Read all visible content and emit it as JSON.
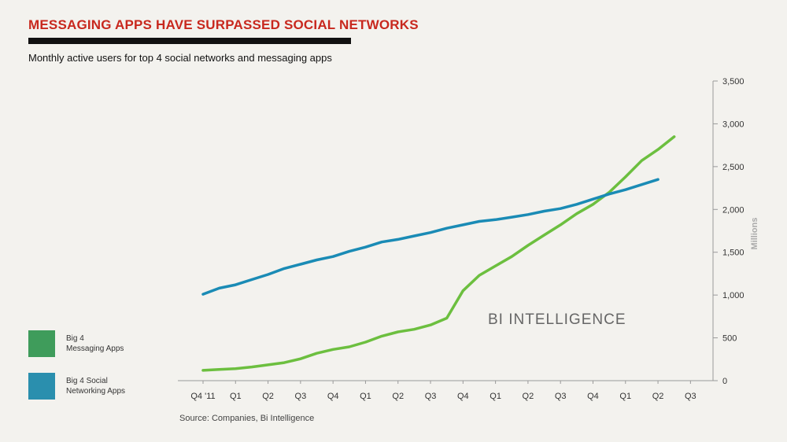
{
  "title": "MESSAGING APPS HAVE SURPASSED SOCIAL NETWORKS",
  "subtitle": "Monthly active users for top 4 social networks and messaging apps",
  "watermark": "BI INTELLIGENCE",
  "source": "Source: Companies, Bi Intelligence",
  "legend": [
    {
      "label_line1": "Big 4",
      "label_line2": "Messaging Apps",
      "color": "#3f9c5b"
    },
    {
      "label_line1": "Big 4 Social",
      "label_line2": "Networking Apps",
      "color": "#2a8fae"
    }
  ],
  "chart_data": {
    "type": "line",
    "ylabel": "Millions",
    "ylim": [
      0,
      3500
    ],
    "yticks": [
      0,
      500,
      1000,
      1500,
      2000,
      2500,
      3000,
      3500
    ],
    "ytick_labels": [
      "0",
      "500",
      "1,000",
      "1,500",
      "2,000",
      "2,500",
      "3,000",
      "3,500"
    ],
    "x_tick_labels": [
      "Q4 '11",
      "Q1",
      "Q2",
      "Q3",
      "Q4",
      "Q1",
      "Q2",
      "Q3",
      "Q4",
      "Q1",
      "Q2",
      "Q3",
      "Q4",
      "Q1",
      "Q2",
      "Q3"
    ],
    "x": [
      0,
      0.5,
      1,
      1.5,
      2,
      2.5,
      3,
      3.5,
      4,
      4.5,
      5,
      5.5,
      6,
      6.5,
      7,
      7.5,
      8,
      8.5,
      9,
      9.5,
      10,
      10.5,
      11,
      11.5,
      12,
      12.5,
      13,
      13.5,
      14,
      14.5,
      15,
      15.5
    ],
    "legend_position": "bottom-left",
    "grid": false,
    "series": [
      {
        "name": "Big 4 Messaging Apps",
        "color": "#6cbf3f",
        "values": [
          120,
          130,
          140,
          160,
          185,
          210,
          255,
          320,
          365,
          395,
          450,
          520,
          570,
          600,
          650,
          730,
          1050,
          1230,
          1340,
          1450,
          1580,
          1700,
          1820,
          1950,
          2060,
          2200,
          2380,
          2570,
          2700,
          2850,
          null,
          null
        ]
      },
      {
        "name": "Big 4 Social Networking Apps",
        "color": "#1a8bb5",
        "values": [
          1010,
          1080,
          1120,
          1180,
          1240,
          1310,
          1360,
          1410,
          1450,
          1510,
          1560,
          1620,
          1650,
          1690,
          1730,
          1780,
          1820,
          1860,
          1880,
          1910,
          1940,
          1980,
          2010,
          2060,
          2120,
          2180,
          2230,
          2290,
          2350,
          null,
          null,
          null
        ]
      }
    ]
  }
}
